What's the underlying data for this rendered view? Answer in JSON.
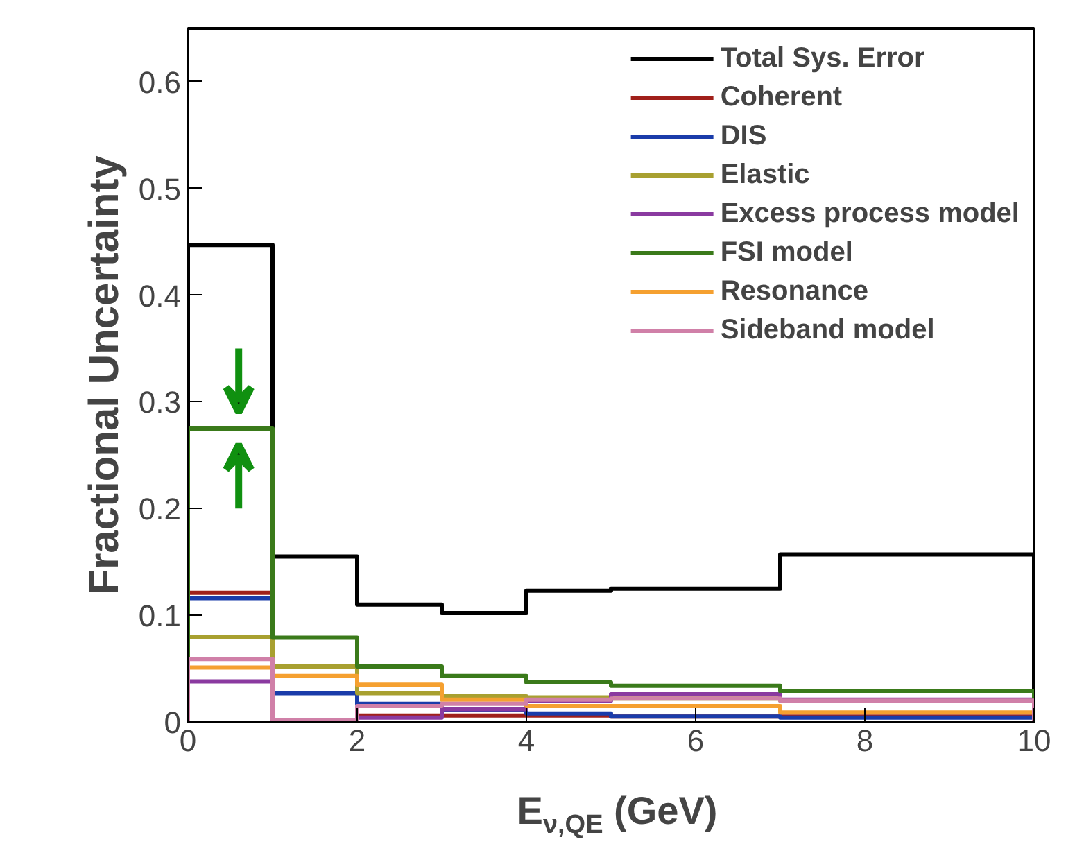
{
  "chart_data": {
    "type": "histogram",
    "xlabel": "E$_{ν,QE}$ (GeV)",
    "ylabel": "Fractional Uncertainty",
    "bins": [
      0,
      1,
      2,
      3,
      4,
      5,
      7,
      10
    ],
    "series": [
      {
        "name": "Total Sys. Error",
        "color": "#000000",
        "values": [
          0.447,
          0.155,
          0.11,
          0.102,
          0.123,
          0.125,
          0.157
        ]
      },
      {
        "name": "Coherent",
        "color": "#a0201a",
        "values": [
          0.121,
          0.002,
          0.006,
          0.006,
          0.006,
          0.005,
          0.005
        ]
      },
      {
        "name": "DIS",
        "color": "#1a3caa",
        "values": [
          0.116,
          0.027,
          0.017,
          0.011,
          0.008,
          0.005,
          0.004
        ]
      },
      {
        "name": "Elastic",
        "color": "#a8a030",
        "values": [
          0.08,
          0.052,
          0.027,
          0.024,
          0.023,
          0.022,
          0.02
        ]
      },
      {
        "name": "Excess process model",
        "color": "#8a3aa0",
        "values": [
          0.038,
          0.001,
          0.004,
          0.012,
          0.02,
          0.026,
          0.021
        ]
      },
      {
        "name": "FSI model",
        "color": "#3a7a1a",
        "values": [
          0.275,
          0.079,
          0.052,
          0.043,
          0.037,
          0.034,
          0.029
        ]
      },
      {
        "name": "Resonance",
        "color": "#f5a030",
        "values": [
          0.051,
          0.043,
          0.035,
          0.021,
          0.015,
          0.015,
          0.009
        ]
      },
      {
        "name": "Sideband model",
        "color": "#d080a8",
        "values": [
          0.059,
          0.002,
          0.015,
          0.017,
          0.021,
          0.022,
          0.02
        ]
      }
    ],
    "xlim": [
      0,
      10
    ],
    "ylim": [
      0,
      0.65
    ],
    "xticks": [
      0,
      2,
      4,
      6,
      8,
      10
    ],
    "yticks": [
      0,
      0.1,
      0.2,
      0.3,
      0.4,
      0.5,
      0.6
    ],
    "legend": "top right",
    "grid": false
  }
}
